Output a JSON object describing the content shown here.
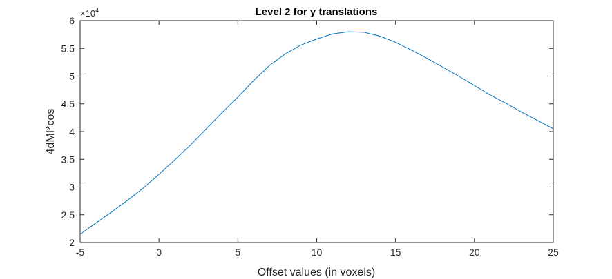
{
  "chart_data": {
    "type": "line",
    "title": "Level 2 for y translations",
    "xlabel": "Offset values (in voxels)",
    "ylabel": "4dMI*cos",
    "y_exponent_prefix": "×10",
    "y_exponent_power": "4",
    "xlim": [
      -5,
      25
    ],
    "ylim": [
      2,
      6
    ],
    "x_ticks": [
      -5,
      0,
      5,
      10,
      15,
      20,
      25
    ],
    "y_ticks": [
      2,
      2.5,
      3,
      3.5,
      4,
      4.5,
      5,
      5.5,
      6
    ],
    "x_tick_labels": [
      "-5",
      "0",
      "5",
      "10",
      "15",
      "20",
      "25"
    ],
    "y_tick_labels": [
      "2",
      "2.5",
      "3",
      "3.5",
      "4",
      "4.5",
      "5",
      "5.5",
      "6"
    ],
    "grid": false,
    "line_color": "#0072BD",
    "series": [
      {
        "x": [
          -5,
          -4,
          -3,
          -2,
          -1,
          0,
          1,
          2,
          3,
          4,
          5,
          6,
          7,
          8,
          9,
          10,
          11,
          12,
          13,
          14,
          15,
          16,
          17,
          18,
          19,
          20,
          21,
          22,
          23,
          24,
          25
        ],
        "y": [
          2.15,
          2.35,
          2.55,
          2.76,
          2.98,
          3.23,
          3.49,
          3.76,
          4.05,
          4.34,
          4.62,
          4.92,
          5.19,
          5.4,
          5.56,
          5.67,
          5.76,
          5.8,
          5.79,
          5.72,
          5.61,
          5.47,
          5.32,
          5.16,
          5.0,
          4.83,
          4.66,
          4.51,
          4.35,
          4.2,
          4.05
        ]
      }
    ]
  }
}
